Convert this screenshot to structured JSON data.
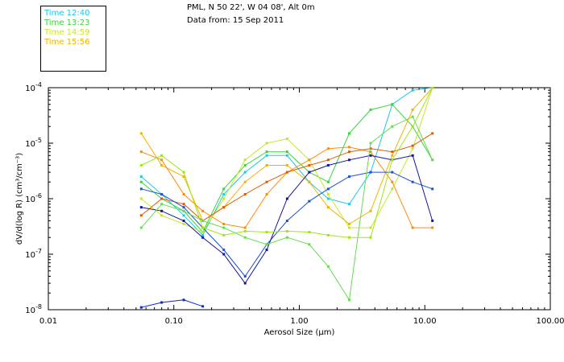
{
  "legend": [
    {
      "label": "Time 12:40",
      "color": "#1ec8e6"
    },
    {
      "label": "Time 13:23",
      "color": "#3cd23c"
    },
    {
      "label": "Time 14:59",
      "color": "#c8e628"
    },
    {
      "label": "Time 15:56",
      "color": "#f0b400"
    }
  ],
  "header": {
    "line1": "PML, N 50 22', W 04 08', Alt 0m",
    "line2": "Data from: 15 Sep 2011"
  },
  "chart_data": {
    "type": "line",
    "title": "PML, N 50 22', W 04 08', Alt 0m",
    "subtitle": "Data from: 15 Sep 2011",
    "xlabel": "Aerosol Size (µm)",
    "ylabel": "dV/d(log R) (cm³/cm⁻³)",
    "xscale": "log",
    "yscale": "log",
    "xlim": [
      0.01,
      100
    ],
    "ylim": [
      1e-08,
      0.0001
    ],
    "xticks": [
      {
        "value": 0.01,
        "label": "0.01"
      },
      {
        "value": 0.1,
        "label": "0.10"
      },
      {
        "value": 1,
        "label": "1.00"
      },
      {
        "value": 10,
        "label": "10.00"
      },
      {
        "value": 100,
        "label": "100.00"
      }
    ],
    "yticks": [
      {
        "value": 1e-08,
        "mant": "10",
        "exp": "-8"
      },
      {
        "value": 1e-07,
        "mant": "10",
        "exp": "-7"
      },
      {
        "value": 1e-06,
        "mant": "10",
        "exp": "-6"
      },
      {
        "value": 1e-05,
        "mant": "10",
        "exp": "-5"
      },
      {
        "value": 0.0001,
        "mant": "10",
        "exp": "-4"
      }
    ],
    "x": [
      0.055,
      0.08,
      0.12,
      0.17,
      0.25,
      0.37,
      0.55,
      0.8,
      1.2,
      1.7,
      2.5,
      3.7,
      5.5,
      8,
      11.5
    ],
    "series": [
      {
        "name": "Time 12:40",
        "color": "#1ec8e6",
        "values": [
          2.5e-06,
          1.2e-06,
          5e-07,
          2.2e-07,
          1.2e-06,
          3e-06,
          6e-06,
          6e-06,
          2e-06,
          1e-06,
          8e-07,
          3e-06,
          5e-05,
          9e-05,
          0.0001
        ]
      },
      {
        "name": "Time 13:23",
        "color": "#3cd23c",
        "values": [
          2e-06,
          1e-06,
          6e-07,
          2.5e-07,
          1.5e-06,
          4e-06,
          7e-06,
          7e-06,
          3e-06,
          2e-06,
          1.5e-05,
          4e-05,
          5e-05,
          2e-05,
          5e-06
        ]
      },
      {
        "name": "Time 14:59",
        "color": "#c8e628",
        "values": [
          1e-06,
          5e-07,
          3.5e-07,
          2.5e-07,
          1e-06,
          5e-06,
          1e-05,
          1.2e-05,
          5e-06,
          1.2e-06,
          3e-07,
          3e-07,
          1.5e-06,
          8e-06,
          0.0001
        ]
      },
      {
        "name": "Time 15:56",
        "color": "#f0b400",
        "values": [
          1.5e-05,
          4e-06,
          2.5e-06,
          4e-07,
          7e-07,
          2e-06,
          4e-06,
          4e-06,
          2e-06,
          7e-07,
          3.5e-07,
          6e-07,
          6e-06,
          4e-05,
          0.0001
        ]
      },
      {
        "name": "",
        "color": "#ff8c00",
        "values": [
          7e-06,
          5e-06,
          1.2e-06,
          6e-07,
          3.5e-07,
          3e-07,
          1.2e-06,
          3e-06,
          5e-06,
          8e-06,
          8.5e-06,
          7e-06,
          2e-06,
          3e-07,
          3e-07
        ]
      },
      {
        "name": "",
        "color": "#e05a00",
        "values": [
          5e-07,
          1e-06,
          8e-07,
          4e-07,
          7e-07,
          1.2e-06,
          2e-06,
          3e-06,
          4e-06,
          5e-06,
          7e-06,
          8e-06,
          7e-06,
          9e-06,
          1.5e-05
        ]
      },
      {
        "name": "",
        "color": "#1e50d2",
        "values": [
          1.5e-06,
          1.2e-06,
          7e-07,
          3e-07,
          1.2e-07,
          4e-08,
          1.5e-07,
          4e-07,
          9e-07,
          1.5e-06,
          2.5e-06,
          3e-06,
          3e-06,
          2e-06,
          1.5e-06
        ]
      },
      {
        "name": "",
        "color": "#1414a0",
        "values": [
          7e-07,
          6e-07,
          4e-07,
          2e-07,
          1e-07,
          3e-08,
          1.2e-07,
          1e-06,
          3e-06,
          4e-06,
          5e-06,
          6e-06,
          5e-06,
          6e-06,
          4e-07
        ]
      },
      {
        "name": "",
        "color": "#64dc50",
        "values": [
          3e-07,
          8e-07,
          6e-07,
          4e-07,
          3e-07,
          2e-07,
          1.5e-07,
          2e-07,
          1.5e-07,
          6e-08,
          1.5e-08,
          1e-05,
          2e-05,
          3e-05,
          5e-06
        ]
      },
      {
        "name": "",
        "color": "#a0e614",
        "values": [
          4e-06,
          6e-06,
          3e-06,
          3e-07,
          2.2e-07,
          2.6e-07,
          2.5e-07,
          2.6e-07,
          2.5e-07,
          2.2e-07,
          2e-07,
          2e-07,
          5e-06,
          2e-05,
          0.0001
        ]
      }
    ],
    "extra_series": {
      "name": "",
      "color": "#0a28c8",
      "x": [
        0.055,
        0.08,
        0.12,
        0.17
      ],
      "values": [
        1.1e-08,
        1.35e-08,
        1.5e-08,
        1.15e-08
      ]
    }
  }
}
